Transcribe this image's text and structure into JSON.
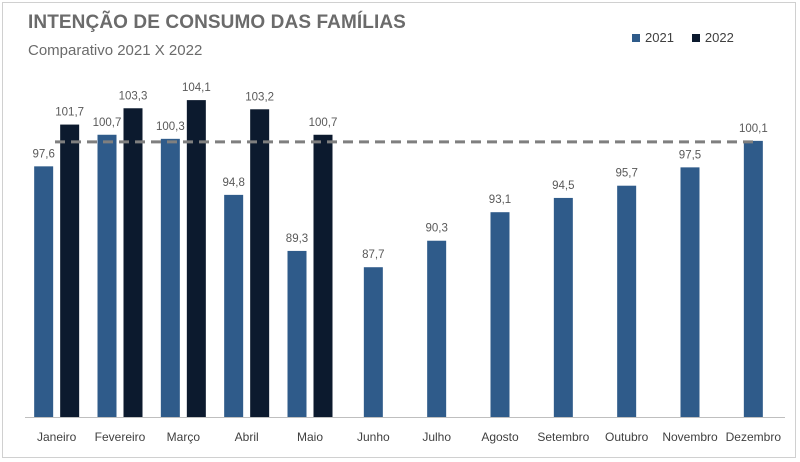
{
  "chart_data": {
    "type": "bar",
    "title": "INTENÇÃO DE CONSUMO DAS FAMÍLIAS",
    "subtitle": "Comparativo 2021 X 2022",
    "categories": [
      "Janeiro",
      "Fevereiro",
      "Março",
      "Abril",
      "Maio",
      "Junho",
      "Julho",
      "Agosto",
      "Setembro",
      "Outubro",
      "Novembro",
      "Dezembro"
    ],
    "series": [
      {
        "name": "2021",
        "color": "#2f5b8a",
        "values": [
          97.6,
          100.7,
          100.3,
          94.8,
          89.3,
          87.7,
          90.3,
          93.1,
          94.5,
          95.7,
          97.5,
          100.1
        ],
        "labels": [
          "97,6",
          "100,7",
          "100,3",
          "94,8",
          "89,3",
          "87,7",
          "90,3",
          "93,1",
          "94,5",
          "95,7",
          "97,5",
          "100,1"
        ]
      },
      {
        "name": "2022",
        "color": "#0c1a2e",
        "values": [
          101.7,
          103.3,
          104.1,
          103.2,
          100.7,
          null,
          null,
          null,
          null,
          null,
          null,
          null
        ],
        "labels": [
          "101,7",
          "103,3",
          "104,1",
          "103,2",
          "100,7",
          "",
          "",
          "",
          "",
          "",
          "",
          ""
        ]
      }
    ],
    "reference_line": 100,
    "reference_line_style": "dashed",
    "ylim": [
      73,
      110
    ],
    "legend_position": "top-right",
    "grid": false
  }
}
